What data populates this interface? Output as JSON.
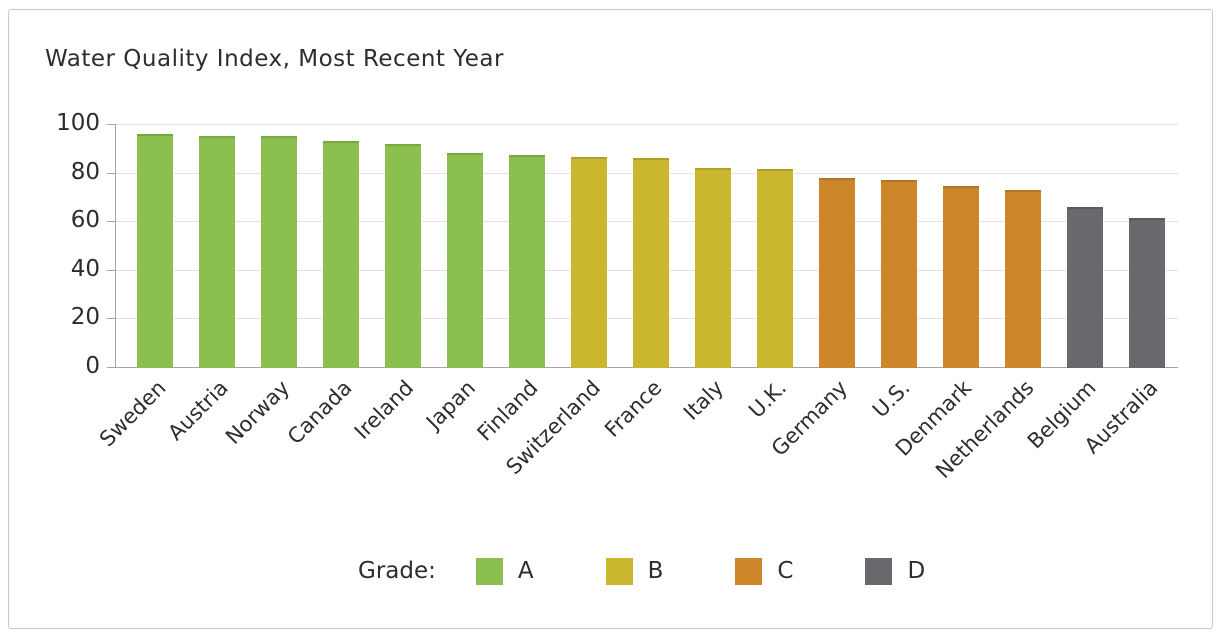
{
  "chart_data": {
    "type": "bar",
    "title": "Water Quality Index, Most Recent Year",
    "categories": [
      "Sweden",
      "Austria",
      "Norway",
      "Canada",
      "Ireland",
      "Japan",
      "Finland",
      "Switzerland",
      "France",
      "Italy",
      "U.K.",
      "Germany",
      "U.S.",
      "Denmark",
      "Netherlands",
      "Belgium",
      "Australia"
    ],
    "values": [
      96,
      95,
      95,
      93,
      92,
      88,
      87.5,
      86.5,
      86,
      82,
      81.5,
      78,
      77,
      74.5,
      73,
      66,
      61.5
    ],
    "grades": [
      "A",
      "A",
      "A",
      "A",
      "A",
      "A",
      "A",
      "B",
      "B",
      "B",
      "B",
      "C",
      "C",
      "C",
      "C",
      "D",
      "D"
    ],
    "grade_colors": {
      "A": "#8CC04E",
      "B": "#CBB72E",
      "C": "#CE862B",
      "D": "#67696C"
    },
    "xlabel": "",
    "ylabel": "",
    "ylim": [
      0,
      100
    ],
    "yticks": [
      0,
      20,
      40,
      60,
      80,
      100
    ],
    "grid": true,
    "legend": {
      "label": "Grade:",
      "position": "bottom-center",
      "entries": [
        {
          "label": "A",
          "color": "#8CC04E"
        },
        {
          "label": "B",
          "color": "#CBB72E"
        },
        {
          "label": "C",
          "color": "#CE862B"
        },
        {
          "label": "D",
          "color": "#67696C"
        }
      ]
    },
    "colors": {
      "axis_line": "#a3a3a3",
      "gridline": "#e3e3e3",
      "text": "#2d2d2d",
      "figure_border": "#c9c9c9",
      "background": "#ffffff"
    }
  }
}
